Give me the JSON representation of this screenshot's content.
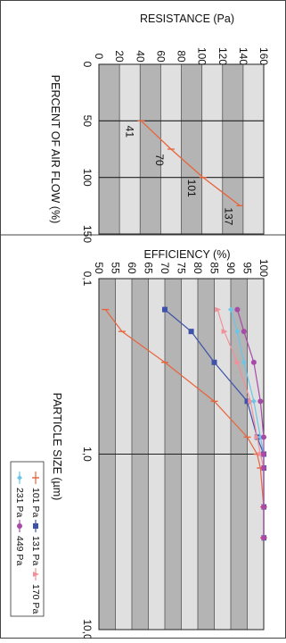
{
  "colors": {
    "band_dark": "#b4b4b4",
    "band_light": "#e0e0e0",
    "frame": "#222222",
    "res_series": "#e8643c",
    "eff_101": "#e8643c",
    "eff_131": "#3d52a8",
    "eff_170": "#f0909a",
    "eff_231": "#6ac6e8",
    "eff_449": "#a84aa8"
  },
  "chart_data": [
    {
      "type": "line",
      "title": "",
      "xlabel": "PERCENT OF AIR FLOW (%)",
      "ylabel": "RESISTANCE (Pa)",
      "xlim": [
        0,
        150
      ],
      "ylim": [
        0,
        160
      ],
      "x_ticks": [
        "0",
        "50",
        "100",
        "150"
      ],
      "y_ticks": [
        "0",
        "20",
        "40",
        "60",
        "80",
        "100",
        "120",
        "140",
        "160"
      ],
      "grid": true,
      "series": [
        {
          "x": [
            50,
            75,
            100,
            125
          ],
          "y": [
            41,
            70,
            101,
            137
          ],
          "labels": [
            "41",
            "70",
            "101",
            "137"
          ]
        }
      ]
    },
    {
      "type": "line",
      "title": "",
      "xlabel": "PARTICLE SIZE (µm)",
      "ylabel": "EFFICIENCY (%)",
      "x_scale": "log",
      "xlim": [
        0.1,
        10
      ],
      "ylim": [
        50,
        100
      ],
      "x_ticks": [
        "0,1",
        "1,0",
        "10,0"
      ],
      "y_ticks": [
        "50",
        "55",
        "60",
        "65",
        "70",
        "75",
        "80",
        "85",
        "90",
        "95",
        "100"
      ],
      "grid": true,
      "legend_position": "bottom",
      "series": [
        {
          "name": "101 Pa",
          "marker": "bar",
          "x": [
            0.15,
            0.2,
            0.3,
            0.5,
            0.8,
            1.0,
            1.2,
            2.0,
            3.0
          ],
          "y": [
            52,
            57,
            70,
            85,
            95,
            98,
            99,
            100,
            100
          ]
        },
        {
          "name": "131 Pa",
          "marker": "square",
          "x": [
            0.15,
            0.2,
            0.3,
            0.5,
            0.8,
            1.0,
            1.2,
            2.0,
            3.0
          ],
          "y": [
            70,
            78,
            85,
            95,
            98,
            100,
            100,
            100,
            100
          ]
        },
        {
          "name": "170 Pa",
          "marker": "triangle",
          "x": [
            0.15,
            0.2,
            0.3,
            0.5,
            0.8,
            1.0,
            1.2,
            2.0,
            3.0
          ],
          "y": [
            86,
            88,
            92,
            96,
            98,
            99,
            100,
            100,
            100
          ]
        },
        {
          "name": "231 Pa",
          "marker": "diamond",
          "x": [
            0.15,
            0.2,
            0.3,
            0.5,
            0.8,
            1.0,
            1.2,
            2.0,
            3.0
          ],
          "y": [
            90,
            92,
            94,
            97,
            99,
            100,
            100,
            100,
            100
          ]
        },
        {
          "name": "449 Pa",
          "marker": "circle",
          "x": [
            0.15,
            0.2,
            0.3,
            0.5,
            0.8,
            1.0,
            1.2,
            2.0,
            3.0
          ],
          "y": [
            92,
            94,
            97,
            99,
            100,
            100,
            100,
            100,
            100
          ]
        }
      ]
    }
  ]
}
